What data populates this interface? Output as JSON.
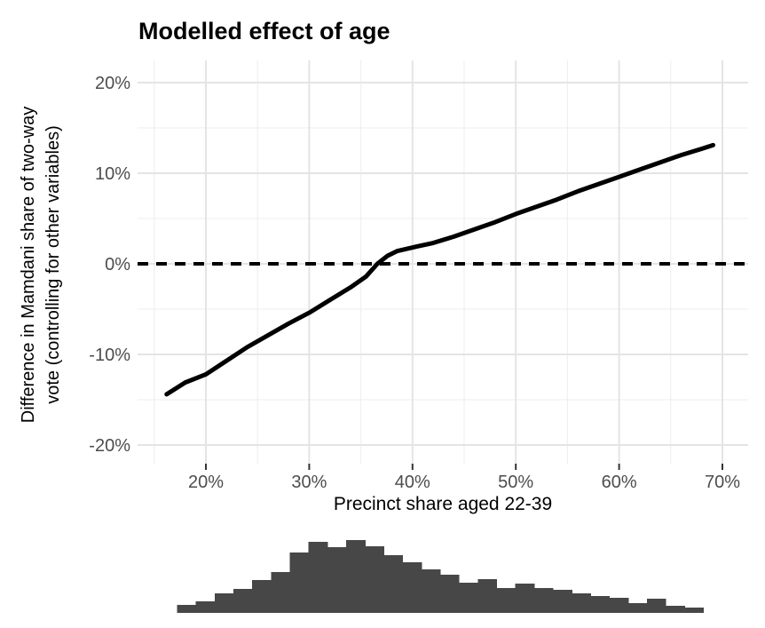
{
  "page": {
    "background": "#ffffff"
  },
  "chart_data": [
    {
      "type": "line",
      "title": "Modelled effect of age",
      "xlabel": "Precinct share aged 22-39",
      "ylabel_lines": [
        "Difference in Mamdani share of two-way",
        "vote (controlling for other variables)"
      ],
      "x_tick_labels": [
        "20%",
        "30%",
        "40%",
        "50%",
        "60%",
        "70%"
      ],
      "x_tick_values": [
        20,
        30,
        40,
        50,
        60,
        70
      ],
      "x_minor_gridlines": [
        15,
        25,
        35,
        45,
        55,
        65
      ],
      "y_tick_labels": [
        "20%",
        "10%",
        "0%",
        "-10%",
        "-20%"
      ],
      "y_tick_values": [
        20,
        10,
        0,
        -10,
        -20
      ],
      "y_minor_gridlines": [
        15,
        5,
        -5,
        -15
      ],
      "xlim": [
        13.4,
        72.5
      ],
      "ylim": [
        -22.1,
        22.5
      ],
      "grid": "major+minor, no panel border",
      "legend": "none",
      "reference_line": {
        "y": 0,
        "style": "dashed",
        "color": "#000000"
      },
      "series": [
        {
          "name": "modelled effect of age",
          "color": "#000000",
          "points": [
            [
              16.2,
              -14.4
            ],
            [
              18,
              -13.1
            ],
            [
              20,
              -12.2
            ],
            [
              22,
              -10.7
            ],
            [
              24,
              -9.2
            ],
            [
              26,
              -7.9
            ],
            [
              28,
              -6.6
            ],
            [
              30,
              -5.4
            ],
            [
              32,
              -4.0
            ],
            [
              34,
              -2.6
            ],
            [
              35.5,
              -1.4
            ],
            [
              36.6,
              0.0
            ],
            [
              37.6,
              0.9
            ],
            [
              38.5,
              1.4
            ],
            [
              40.4,
              1.9
            ],
            [
              42,
              2.3
            ],
            [
              44,
              3.0
            ],
            [
              46,
              3.8
            ],
            [
              48,
              4.6
            ],
            [
              50,
              5.5
            ],
            [
              52,
              6.3
            ],
            [
              54,
              7.1
            ],
            [
              56,
              8.0
            ],
            [
              58,
              8.8
            ],
            [
              60,
              9.6
            ],
            [
              62,
              10.4
            ],
            [
              64,
              11.2
            ],
            [
              66,
              12.0
            ],
            [
              68,
              12.7
            ],
            [
              69.1,
              13.1
            ]
          ]
        }
      ],
      "colors": {
        "line": "#000000",
        "grid_major": "#e4e4e4",
        "grid_minor": "#f0f0f0",
        "tick_mark": "#333333",
        "tick_label": "#4d4d4d"
      }
    },
    {
      "type": "bar",
      "name": "distribution of precinct share aged 22-39 (rug histogram)",
      "bin_start_pct": 17.2,
      "bin_width_pct": 1.82,
      "relative_heights": [
        9,
        13,
        22,
        27,
        37,
        46,
        68,
        80,
        74,
        82,
        75,
        65,
        57,
        49,
        43,
        34,
        38,
        28,
        33,
        28,
        26,
        22,
        19,
        17,
        11,
        16,
        8,
        6
      ],
      "color": "#474747"
    }
  ]
}
